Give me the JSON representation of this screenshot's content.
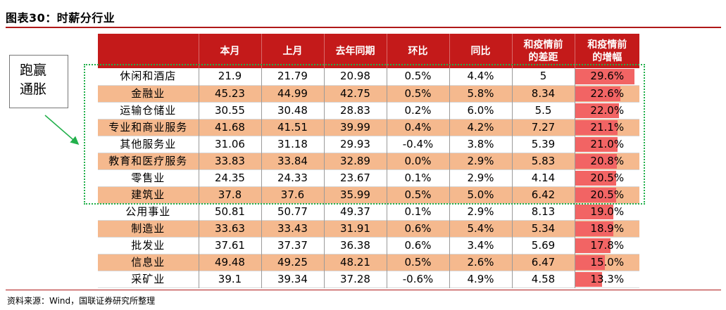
{
  "title": "图表30：时薪分行业",
  "source": "资料来源：Wind，国联证券研究所整理",
  "callout": {
    "line1": "跑赢",
    "line2": "通胀"
  },
  "colors": {
    "header_bg": "#c41a1a",
    "stripe": "#f5b98e",
    "bar": "#f26464",
    "highlight_box": "#22b04b"
  },
  "chart_data": {
    "type": "table",
    "columns": [
      "",
      "本月",
      "上月",
      "去年同期",
      "环比",
      "同比",
      "和疫情前的差距",
      "和疫情前的增幅"
    ],
    "rows": [
      {
        "industry": "休闲和酒店",
        "current": "21.9",
        "last_month": "21.79",
        "last_year": "20.98",
        "mom": "0.5%",
        "yoy": "4.4%",
        "gap": "5",
        "growth": "29.6%",
        "growth_value": 29.6
      },
      {
        "industry": "金融业",
        "current": "45.23",
        "last_month": "44.99",
        "last_year": "42.75",
        "mom": "0.5%",
        "yoy": "5.8%",
        "gap": "8.34",
        "growth": "22.6%",
        "growth_value": 22.6
      },
      {
        "industry": "运输仓储业",
        "current": "30.55",
        "last_month": "30.48",
        "last_year": "28.83",
        "mom": "0.2%",
        "yoy": "6.0%",
        "gap": "5.5",
        "growth": "22.0%",
        "growth_value": 22.0
      },
      {
        "industry": "专业和商业服务",
        "current": "41.68",
        "last_month": "41.51",
        "last_year": "39.99",
        "mom": "0.4%",
        "yoy": "4.2%",
        "gap": "7.27",
        "growth": "21.1%",
        "growth_value": 21.1
      },
      {
        "industry": "其他服务业",
        "current": "31.06",
        "last_month": "31.18",
        "last_year": "29.93",
        "mom": "-0.4%",
        "yoy": "3.8%",
        "gap": "5.39",
        "growth": "21.0%",
        "growth_value": 21.0
      },
      {
        "industry": "教育和医疗服务",
        "current": "33.83",
        "last_month": "33.84",
        "last_year": "32.89",
        "mom": "0.0%",
        "yoy": "2.9%",
        "gap": "5.83",
        "growth": "20.8%",
        "growth_value": 20.8
      },
      {
        "industry": "零售业",
        "current": "24.35",
        "last_month": "24.33",
        "last_year": "23.67",
        "mom": "0.1%",
        "yoy": "2.9%",
        "gap": "4.14",
        "growth": "20.5%",
        "growth_value": 20.5
      },
      {
        "industry": "建筑业",
        "current": "37.8",
        "last_month": "37.6",
        "last_year": "35.99",
        "mom": "0.5%",
        "yoy": "5.0%",
        "gap": "6.42",
        "growth": "20.5%",
        "growth_value": 20.5
      },
      {
        "industry": "公用事业",
        "current": "50.81",
        "last_month": "50.77",
        "last_year": "49.37",
        "mom": "0.1%",
        "yoy": "2.9%",
        "gap": "8.13",
        "growth": "19.0%",
        "growth_value": 19.0
      },
      {
        "industry": "制造业",
        "current": "33.63",
        "last_month": "33.43",
        "last_year": "31.91",
        "mom": "0.6%",
        "yoy": "5.4%",
        "gap": "5.34",
        "growth": "18.9%",
        "growth_value": 18.9
      },
      {
        "industry": "批发业",
        "current": "37.61",
        "last_month": "37.37",
        "last_year": "36.38",
        "mom": "0.6%",
        "yoy": "3.4%",
        "gap": "5.69",
        "growth": "17.8%",
        "growth_value": 17.8
      },
      {
        "industry": "信息业",
        "current": "49.48",
        "last_month": "49.25",
        "last_year": "48.21",
        "mom": "0.5%",
        "yoy": "2.6%",
        "gap": "6.47",
        "growth": "15.0%",
        "growth_value": 15.0
      },
      {
        "industry": "采矿业",
        "current": "39.1",
        "last_month": "39.34",
        "last_year": "37.28",
        "mom": "-0.6%",
        "yoy": "4.9%",
        "gap": "4.58",
        "growth": "13.3%",
        "growth_value": 13.3
      }
    ],
    "growth_bar_max": 32,
    "highlighted_rows": 8
  }
}
